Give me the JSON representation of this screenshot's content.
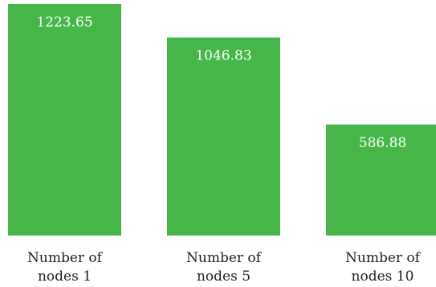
{
  "chart_data": {
    "type": "bar",
    "categories": [
      [
        "Number of",
        "nodes 1"
      ],
      [
        "Number of",
        "nodes 5"
      ],
      [
        "Number of",
        "nodes 10"
      ]
    ],
    "values": [
      1223.65,
      1046.83,
      586.88
    ],
    "value_labels": [
      "1223.65",
      "1046.83",
      "586.88"
    ],
    "bar_color": "#46b649",
    "ylim": [
      0,
      1300
    ],
    "grid": false,
    "legend": "none",
    "title": "",
    "xlabel": "",
    "ylabel": ""
  }
}
